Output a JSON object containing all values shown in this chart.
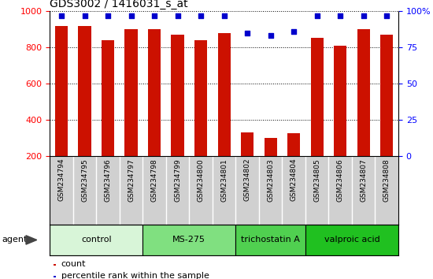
{
  "title": "GDS3002 / 1416031_s_at",
  "samples": [
    "GSM234794",
    "GSM234795",
    "GSM234796",
    "GSM234797",
    "GSM234798",
    "GSM234799",
    "GSM234800",
    "GSM234801",
    "GSM234802",
    "GSM234803",
    "GSM234804",
    "GSM234805",
    "GSM234806",
    "GSM234807",
    "GSM234808"
  ],
  "counts": [
    920,
    920,
    840,
    900,
    900,
    870,
    840,
    880,
    330,
    300,
    325,
    855,
    810,
    900,
    870
  ],
  "percentiles": [
    97,
    97,
    97,
    97,
    97,
    97,
    97,
    97,
    85,
    83,
    86,
    97,
    97,
    97,
    97
  ],
  "groups": [
    {
      "label": "control",
      "start": 0,
      "end": 4,
      "color": "#d8f5d8"
    },
    {
      "label": "MS-275",
      "start": 4,
      "end": 8,
      "color": "#80e080"
    },
    {
      "label": "trichostatin A",
      "start": 8,
      "end": 11,
      "color": "#50d050"
    },
    {
      "label": "valproic acid",
      "start": 11,
      "end": 15,
      "color": "#20c020"
    }
  ],
  "ylim_left": [
    200,
    1000
  ],
  "ylim_right": [
    0,
    100
  ],
  "yticks_left": [
    200,
    400,
    600,
    800,
    1000
  ],
  "yticks_right": [
    0,
    25,
    50,
    75,
    100
  ],
  "bar_color": "#cc1100",
  "dot_color": "#0000cc",
  "bar_width": 0.55,
  "agent_label": "agent",
  "sample_box_color": "#d0d0d0",
  "figure_width": 5.5,
  "figure_height": 3.54
}
